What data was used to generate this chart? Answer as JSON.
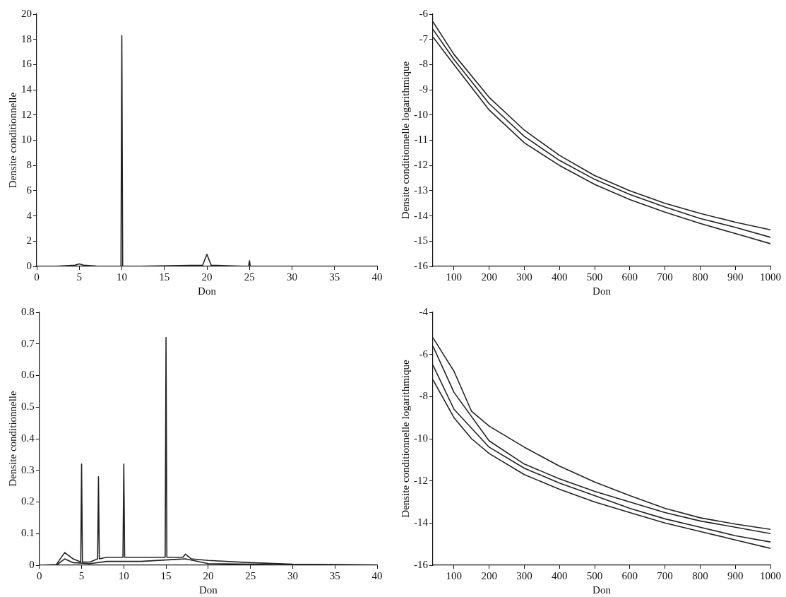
{
  "chart_data": [
    {
      "type": "line",
      "xlabel": "Don",
      "ylabel": "Densite conditionnelle",
      "xlim": [
        0,
        40
      ],
      "xticks": [
        0,
        5,
        10,
        15,
        20,
        25,
        30,
        35,
        40
      ],
      "ylim": [
        0,
        20
      ],
      "yticks": [
        0,
        2,
        4,
        6,
        8,
        10,
        12,
        14,
        16,
        18,
        20
      ],
      "grid": false,
      "legend": false,
      "marker": "none",
      "series": [
        {
          "color": "#222222",
          "x": [
            0,
            2,
            4.5,
            5,
            5.5,
            7,
            9.9,
            10,
            10.1,
            11,
            19.5,
            20,
            20.5,
            24.9,
            25,
            25.1,
            40
          ],
          "values": [
            0,
            0,
            0.1,
            0.2,
            0.1,
            0.02,
            0,
            18.3,
            0,
            0,
            0.1,
            0.95,
            0.1,
            0,
            0.45,
            0,
            0
          ]
        }
      ]
    },
    {
      "type": "line",
      "xlabel": "Don",
      "ylabel": "Densite conditionnelle logarithmique",
      "xlim": [
        40,
        1000
      ],
      "xticks": [
        100,
        200,
        300,
        400,
        500,
        600,
        700,
        800,
        900,
        1000
      ],
      "ylim": [
        -16,
        -6
      ],
      "yticks": [
        -16,
        -15,
        -14,
        -13,
        -12,
        -11,
        -10,
        -9,
        -8,
        -7,
        -6
      ],
      "grid": false,
      "legend": false,
      "marker": "none",
      "series": [
        {
          "color": "#222222",
          "x": [
            40,
            100,
            200,
            300,
            400,
            500,
            600,
            700,
            800,
            900,
            1000
          ],
          "values": [
            -6.3,
            -7.6,
            -9.3,
            -10.6,
            -11.6,
            -12.4,
            -13.0,
            -13.5,
            -13.9,
            -14.25,
            -14.55
          ]
        },
        {
          "color": "#222222",
          "x": [
            40,
            100,
            200,
            300,
            400,
            500,
            600,
            700,
            800,
            900,
            1000
          ],
          "values": [
            -6.6,
            -7.8,
            -9.55,
            -10.85,
            -11.8,
            -12.55,
            -13.15,
            -13.65,
            -14.1,
            -14.45,
            -14.85
          ]
        },
        {
          "color": "#222222",
          "x": [
            40,
            100,
            200,
            300,
            400,
            500,
            600,
            700,
            800,
            900,
            1000
          ],
          "values": [
            -6.9,
            -8.0,
            -9.8,
            -11.1,
            -12.0,
            -12.75,
            -13.35,
            -13.85,
            -14.3,
            -14.7,
            -15.1
          ]
        }
      ]
    },
    {
      "type": "line",
      "xlabel": "Don",
      "ylabel": "Densite conditionnelle",
      "xlim": [
        0,
        40
      ],
      "xticks": [
        0,
        5,
        10,
        15,
        20,
        25,
        30,
        35,
        40
      ],
      "ylim": [
        0,
        0.8
      ],
      "yticks": [
        0,
        0.1,
        0.2,
        0.3,
        0.4,
        0.5,
        0.6,
        0.7,
        0.8
      ],
      "grid": false,
      "legend": false,
      "marker": "none",
      "series": [
        {
          "color": "#222222",
          "x": [
            0,
            2,
            3,
            4,
            4.9,
            5,
            5.1,
            6,
            6.9,
            7,
            7.1,
            8,
            9.9,
            10,
            10.1,
            12,
            14.9,
            15,
            15.1,
            17,
            17.3,
            18,
            20,
            25,
            30,
            40
          ],
          "values": [
            0,
            0.002,
            0.04,
            0.02,
            0.01,
            0.32,
            0.01,
            0.01,
            0.02,
            0.28,
            0.02,
            0.025,
            0.025,
            0.32,
            0.025,
            0.025,
            0.025,
            0.72,
            0.025,
            0.025,
            0.035,
            0.02,
            0.015,
            0.008,
            0.003,
            0.001
          ]
        },
        {
          "color": "#222222",
          "x": [
            0,
            2,
            3,
            4,
            6,
            8,
            12,
            17.3,
            20,
            25,
            30,
            40
          ],
          "values": [
            0,
            0,
            0.02,
            0.008,
            0.005,
            0.012,
            0.012,
            0.02,
            0.005,
            0.003,
            0.001,
            0
          ]
        }
      ]
    },
    {
      "type": "line",
      "xlabel": "Don",
      "ylabel": "Densite conditionnelle logarithmique",
      "xlim": [
        40,
        1000
      ],
      "xticks": [
        100,
        200,
        300,
        400,
        500,
        600,
        700,
        800,
        900,
        1000
      ],
      "ylim": [
        -16,
        -4
      ],
      "yticks": [
        -16,
        -14,
        -12,
        -10,
        -8,
        -6,
        -4
      ],
      "grid": false,
      "legend": false,
      "marker": "none",
      "series": [
        {
          "color": "#222222",
          "x": [
            40,
            100,
            150,
            200,
            300,
            400,
            500,
            600,
            700,
            800,
            900,
            1000
          ],
          "values": [
            -5.2,
            -6.8,
            -8.7,
            -9.4,
            -10.4,
            -11.3,
            -12.05,
            -12.7,
            -13.3,
            -13.75,
            -14.05,
            -14.3
          ]
        },
        {
          "color": "#222222",
          "x": [
            40,
            100,
            200,
            300,
            400,
            500,
            600,
            700,
            800,
            900,
            1000
          ],
          "values": [
            -5.6,
            -7.8,
            -10.1,
            -11.2,
            -11.9,
            -12.5,
            -13.0,
            -13.5,
            -13.9,
            -14.2,
            -14.5
          ]
        },
        {
          "color": "#222222",
          "x": [
            40,
            100,
            200,
            300,
            400,
            500,
            600,
            700,
            800,
            900,
            1000
          ],
          "values": [
            -6.5,
            -8.6,
            -10.4,
            -11.4,
            -12.1,
            -12.7,
            -13.3,
            -13.8,
            -14.2,
            -14.6,
            -14.9
          ]
        },
        {
          "color": "#222222",
          "x": [
            40,
            100,
            150,
            200,
            300,
            400,
            500,
            600,
            700,
            800,
            900,
            1000
          ],
          "values": [
            -7.2,
            -9.0,
            -10.0,
            -10.7,
            -11.7,
            -12.4,
            -13.0,
            -13.5,
            -14.0,
            -14.4,
            -14.8,
            -15.2
          ]
        }
      ]
    }
  ]
}
